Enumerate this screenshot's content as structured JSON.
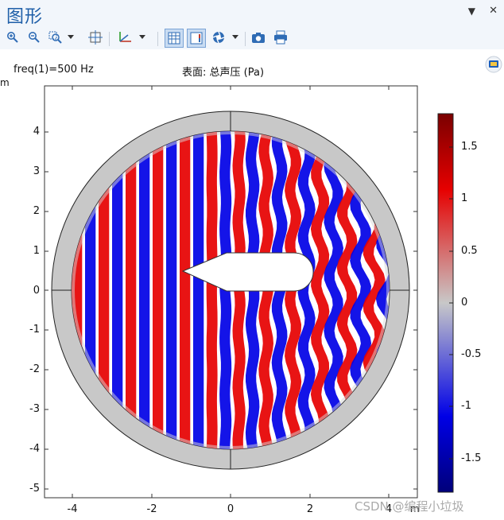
{
  "window": {
    "title": "图形",
    "menu_glyph": "▼",
    "close_glyph": "✕"
  },
  "toolbar": {
    "icons": [
      "zoom-in-icon",
      "zoom-out-icon",
      "zoom-box-icon",
      "dropdown-icon",
      "zoom-extents-icon",
      "axis-orientation-icon",
      "dropdown-icon",
      "grid-view-icon",
      "color-legend-icon",
      "scene-light-icon",
      "dropdown-icon",
      "camera-icon",
      "print-icon"
    ]
  },
  "plot": {
    "freq_label": "freq(1)=500 Hz",
    "subtitle": "表面: 总声压 (Pa)",
    "unit_y": "m",
    "unit_x": "m",
    "y_ticks": [
      "4",
      "3",
      "2",
      "1",
      "0",
      "-1",
      "-2",
      "-3",
      "-4",
      "-5"
    ],
    "x_ticks": [
      "-4",
      "-2",
      "0",
      "2",
      "4"
    ],
    "colorbar_ticks": [
      "1.5",
      "1",
      "0.5",
      "0",
      "-0.5",
      "-1",
      "-1.5"
    ],
    "colormap": {
      "max": "#7a0000",
      "high": "#e60000",
      "mid": "#c8c8c8",
      "low": "#0000e6",
      "min": "#00007a"
    },
    "ring_color": "#c8c8c8"
  },
  "watermark": "CSDN @编程小垃圾"
}
